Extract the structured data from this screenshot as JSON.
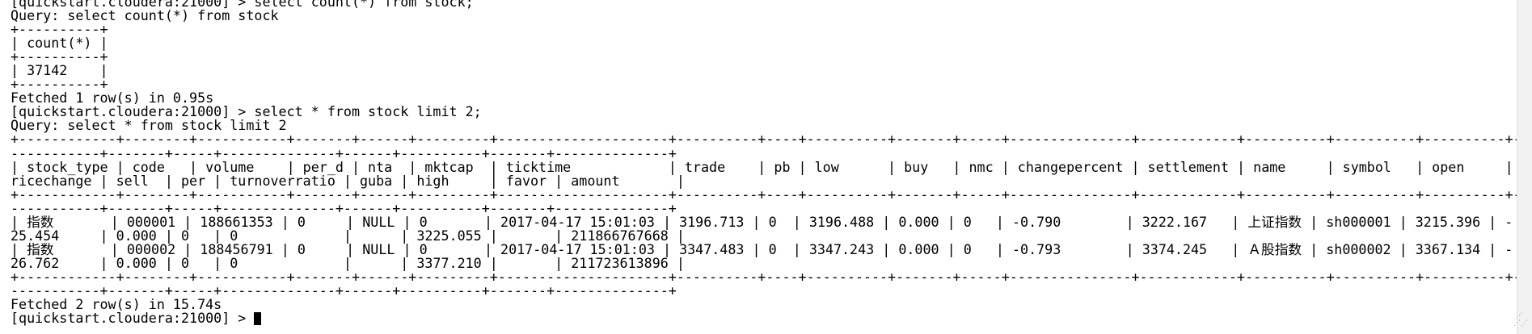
{
  "terminal": {
    "lines": [
      "[quickstart.cloudera:21000] > select count(*) from stock;",
      "Query: select count(*) from stock",
      "+----------+",
      "| count(*) |",
      "+----------+",
      "| 37142    |",
      "+----------+",
      "Fetched 1 row(s) in 0.95s",
      "[quickstart.cloudera:21000] > select * from stock limit 2;",
      "Query: select * from stock limit 2",
      "+------------+--------+-----------+-------+------+---------+---------------------+----------+----+----------+-------+-----+---------------+------------+----------+----------+----------+--+",
      "-----------+-------+-----+--------------+------+----------+-------+--------------+",
      "| stock_type | code   | volume    | per_d | nta  | mktcap  | ticktime            | trade    | pb | low      | buy   | nmc | changepercent | settlement | name     | symbol   | open     | p",
      "ricechange | sell  | per | turnoverratio | guba | high     | favor | amount       |",
      "+------------+--------+-----------+-------+------+---------+---------------------+----------+----+----------+-------+-----+---------------+------------+----------+----------+----------+--+",
      "-----------+-------+-----+--------------+------+----------+-------+--------------+",
      "| 指数       | 000001 | 188661353 | 0     | NULL | 0       | 2017-04-17 15:01:03 | 3196.713 | 0  | 3196.488 | 0.000 | 0   | -0.790        | 3222.167   | 上证指数 | sh000001 | 3215.396 | -",
      "25.454     | 0.000 | 0   | 0             |      | 3225.055 |       | 211866767668 |",
      "| 指数       | 000002 | 188456791 | 0     | NULL | 0       | 2017-04-17 15:01:03 | 3347.483 | 0  | 3347.243 | 0.000 | 0   | -0.793        | 3374.245   | Ａ股指数 | sh000002 | 3367.134 | -",
      "26.762     | 0.000 | 0   | 0             |      | 3377.210 |       | 211723613896 |",
      "+------------+--------+-----------+-------+------+---------+---------------------+----------+----+----------+-------+-----+---------------+------------+----------+----------+----------+--+",
      "-----------+-------+-----+--------------+------+----------+-------+--------------+",
      "Fetched 2 row(s) in 15.74s"
    ],
    "prompt": "[quickstart.cloudera:21000] > "
  }
}
